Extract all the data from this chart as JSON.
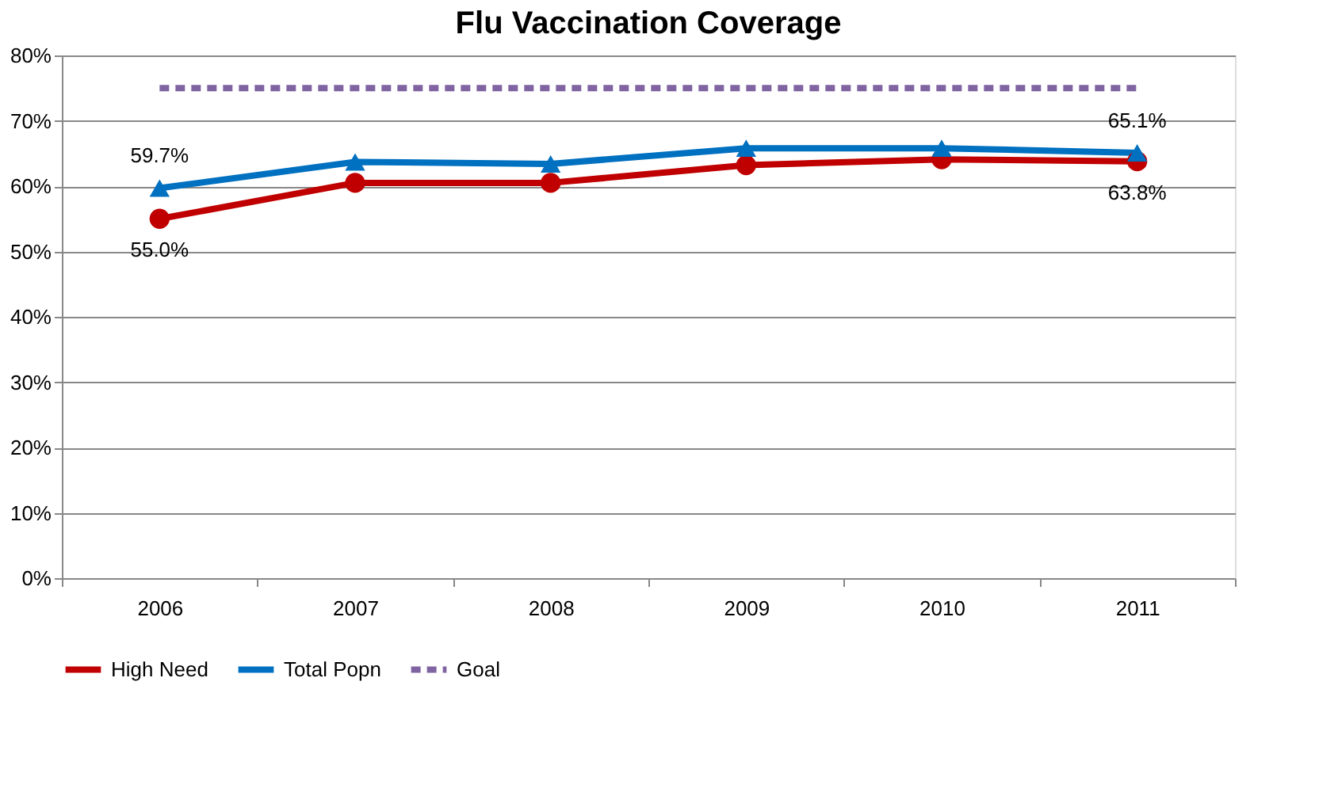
{
  "chart_data": {
    "type": "line",
    "title": "Flu Vaccination  Coverage",
    "categories": [
      "2006",
      "2007",
      "2008",
      "2009",
      "2010",
      "2011"
    ],
    "series": [
      {
        "name": "High Need",
        "color": "#c00000",
        "marker": "circle",
        "line_style": "solid",
        "values": [
          55.0,
          60.5,
          60.5,
          63.2,
          64.1,
          63.8
        ],
        "value_labels": [
          "55.0%",
          null,
          null,
          null,
          null,
          "63.8%"
        ]
      },
      {
        "name": "Total Popn",
        "color": "#0070c0",
        "marker": "triangle",
        "line_style": "solid",
        "values": [
          59.7,
          63.7,
          63.4,
          65.8,
          65.8,
          65.1
        ],
        "value_labels": [
          "59.7%",
          null,
          null,
          null,
          null,
          "65.1%"
        ]
      },
      {
        "name": "Goal",
        "color": "#8064a2",
        "marker": "none",
        "line_style": "dashed",
        "values": [
          75,
          75,
          75,
          75,
          75,
          75
        ]
      }
    ],
    "ylim": [
      0,
      80
    ],
    "yticks": [
      {
        "value": 0,
        "label": "0%"
      },
      {
        "value": 10,
        "label": "10%"
      },
      {
        "value": 20,
        "label": "20%"
      },
      {
        "value": 30,
        "label": "30%"
      },
      {
        "value": 40,
        "label": "40%"
      },
      {
        "value": 50,
        "label": "50%"
      },
      {
        "value": 60,
        "label": "60%"
      },
      {
        "value": 70,
        "label": "70%"
      },
      {
        "value": 80,
        "label": "80%"
      }
    ],
    "grid": "y",
    "legend": "bottom"
  }
}
